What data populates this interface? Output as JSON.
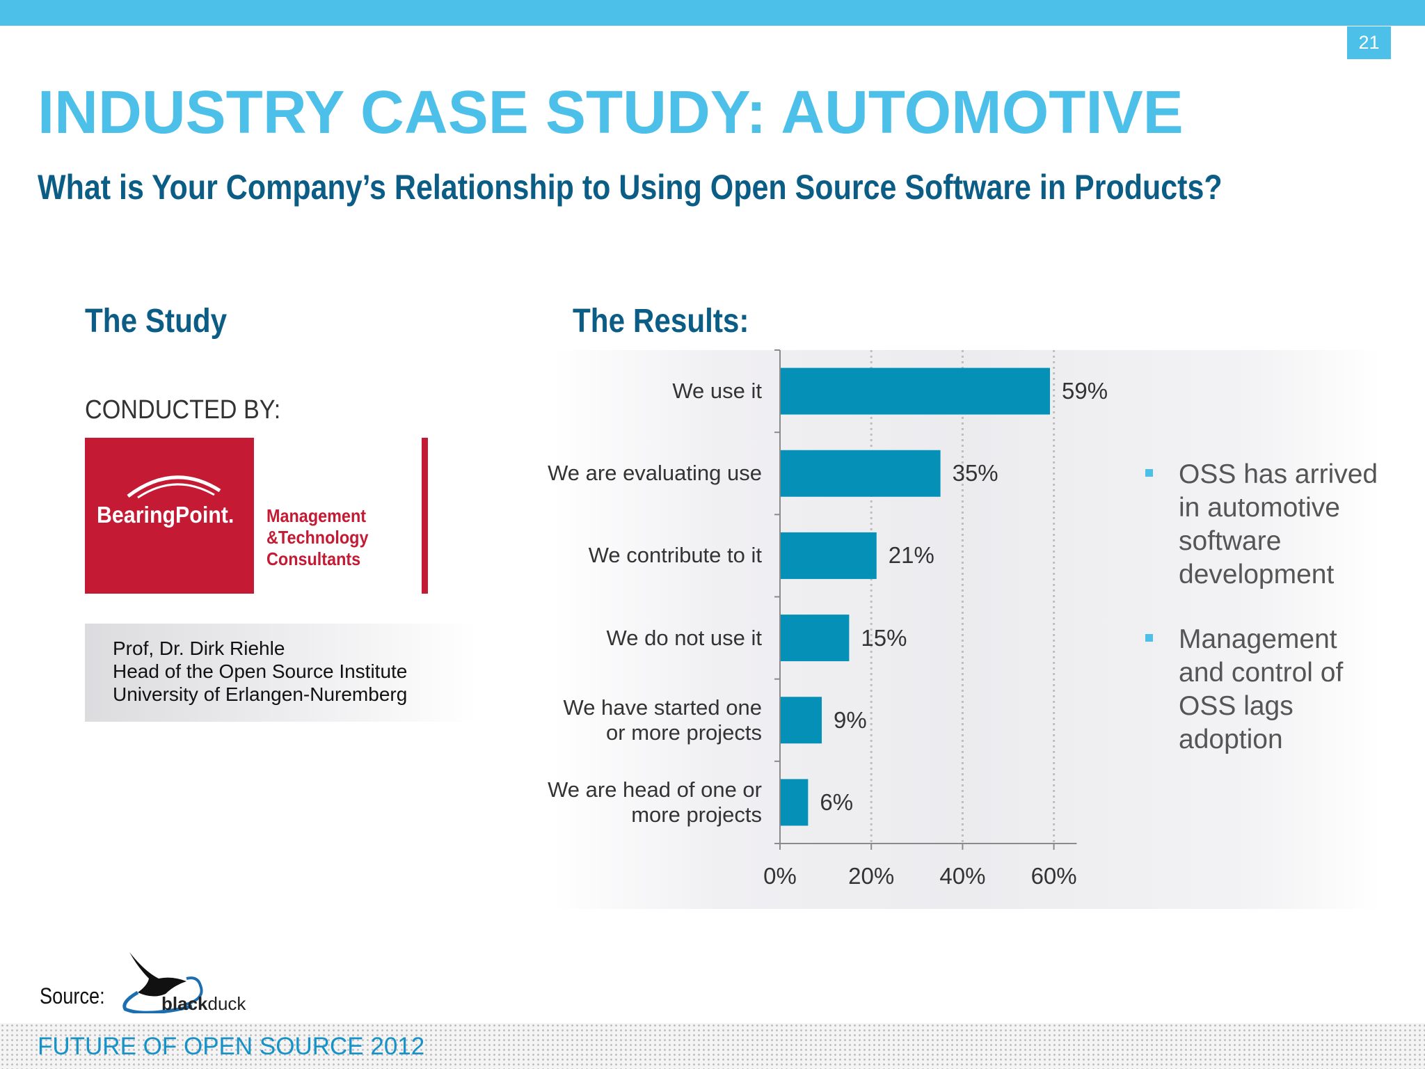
{
  "slide": {
    "page_number": "21",
    "title": "INDUSTRY CASE STUDY: AUTOMOTIVE",
    "subtitle": "What is Your Company’s Relationship to Using Open Source Software in Products?",
    "footer": "FUTURE OF OPEN SOURCE 2012"
  },
  "study": {
    "heading": "The Study",
    "conducted_by": "CONDUCTED BY:",
    "logo_name": "BearingPoint.",
    "logo_tagline": [
      "Management",
      "&Technology",
      "Consultants"
    ],
    "person": [
      "Prof, Dr. Dirk Riehle",
      "Head of the Open Source Institute",
      "University of Erlangen-Nuremberg"
    ]
  },
  "results": {
    "heading": "The Results:"
  },
  "chart_data": {
    "type": "bar",
    "orientation": "horizontal",
    "categories": [
      "We use it",
      "We are evaluating use",
      "We contribute to it",
      "We do not use it",
      "We have started one or more projects",
      "We are head of one or more projects"
    ],
    "category_lines": [
      [
        "We use it"
      ],
      [
        "We are evaluating use"
      ],
      [
        "We contribute to it"
      ],
      [
        "We do not use it"
      ],
      [
        "We have started one",
        "or more projects"
      ],
      [
        "We are head of one or",
        "more projects"
      ]
    ],
    "values": [
      59,
      35,
      21,
      15,
      9,
      6
    ],
    "value_labels": [
      "59%",
      "35%",
      "21%",
      "15%",
      "9%",
      "6%"
    ],
    "xlim": [
      0,
      65
    ],
    "xticks": [
      0,
      20,
      40,
      60
    ],
    "xtick_labels": [
      "0%",
      "20%",
      "40%",
      "60%"
    ],
    "grid": "vertical dotted",
    "bar_color": "#0590b8",
    "title": "",
    "xlabel": "",
    "ylabel": ""
  },
  "bullets": [
    [
      "OSS has arrived",
      "in automotive",
      "software",
      "development"
    ],
    [
      "Management",
      "and control of",
      "OSS lags",
      "adoption"
    ]
  ],
  "source": {
    "label": "Source:",
    "logo_text_bold": "black",
    "logo_text": "duck"
  },
  "colors": {
    "accent": "#4cc0e8",
    "heading": "#0b5d86",
    "brand_red": "#c41a33"
  }
}
